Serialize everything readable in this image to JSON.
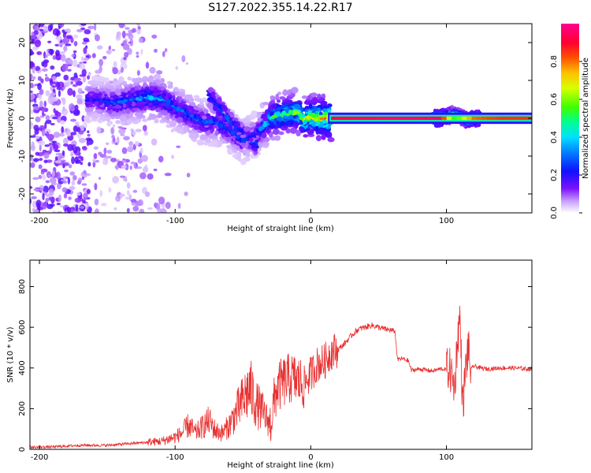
{
  "title": "S127.2022.355.14.22.R17",
  "chart_data": [
    {
      "type": "heatmap",
      "xlabel": "Height of straight line (km)",
      "ylabel": "Frequency (Hz)",
      "xlim": [
        -207,
        163
      ],
      "ylim": [
        -25,
        25
      ],
      "xticks": [
        -200,
        -100,
        0,
        100
      ],
      "yticks": [
        -20,
        -10,
        0,
        10,
        20
      ],
      "grid": false,
      "colorbar": {
        "label": "Normalized spectral amplitude",
        "range": [
          0,
          1
        ],
        "ticks": [
          "0.0",
          "0.2",
          "0.4",
          "0.6",
          "0.8"
        ],
        "colormap": [
          "#ffffff",
          "#9b30ff",
          "#3a00ff",
          "#0040ff",
          "#00c8ff",
          "#00ff90",
          "#50ff00",
          "#e6ff00",
          "#ffb000",
          "#ff4000",
          "#ff0040",
          "#ff0090"
        ]
      },
      "ridge": {
        "x": [
          -160,
          -145,
          -130,
          -120,
          -110,
          -100,
          -90,
          -80,
          -70,
          -60,
          -50,
          -40,
          -35,
          -30,
          -20,
          -10,
          -5,
          0,
          5,
          15,
          40,
          60,
          80,
          95,
          100,
          105,
          110,
          115,
          120,
          140,
          163
        ],
        "freq": [
          5,
          4,
          5,
          5.5,
          5,
          3,
          1,
          -1,
          -1,
          -3,
          -6,
          -4,
          -2,
          0,
          1,
          1.5,
          -0.5,
          0.5,
          0,
          0,
          0,
          0,
          0,
          0,
          0.5,
          1,
          0.5,
          -0.5,
          0,
          0,
          0
        ],
        "amplitude": [
          0.25,
          0.3,
          0.35,
          0.4,
          0.38,
          0.33,
          0.32,
          0.3,
          0.3,
          0.28,
          0.27,
          0.25,
          0.4,
          0.55,
          0.6,
          0.65,
          0.7,
          0.75,
          0.8,
          0.93,
          0.95,
          0.96,
          0.96,
          0.95,
          0.75,
          0.55,
          0.6,
          0.72,
          0.8,
          0.85,
          0.85
        ]
      },
      "branch": {
        "x": [
          -75,
          -68,
          -62,
          -55,
          -48,
          -43,
          -40
        ],
        "freq": [
          6,
          3,
          0,
          -3,
          -5,
          -6,
          -7
        ],
        "amplitude": [
          0.25,
          0.3,
          0.35,
          0.32,
          0.3,
          0.3,
          0.28
        ]
      }
    },
    {
      "type": "line",
      "xlabel": "Height of straight line (km)",
      "ylabel": "SNR (10 * v/v)",
      "xlim": [
        -207,
        163
      ],
      "ylim": [
        0,
        930
      ],
      "xticks": [
        -200,
        -100,
        0,
        100
      ],
      "yticks": [
        0,
        200,
        400,
        600,
        800
      ],
      "grid": false,
      "series": [
        {
          "color": "#e83030",
          "x": [
            -207,
            -190,
            -170,
            -150,
            -130,
            -110,
            -100,
            -95,
            -90,
            -85,
            -80,
            -75,
            -70,
            -65,
            -60,
            -55,
            -50,
            -45,
            -40,
            -35,
            -30,
            -25,
            -20,
            -15,
            -10,
            -5,
            0,
            5,
            10,
            15,
            20,
            25,
            30,
            35,
            40,
            45,
            50,
            55,
            60,
            62,
            64,
            66,
            68,
            70,
            72,
            74,
            76,
            80,
            85,
            90,
            95,
            98,
            100,
            102,
            104,
            106,
            108,
            110,
            112,
            114,
            116,
            118,
            120,
            125,
            130,
            140,
            150,
            160,
            163
          ],
          "y": [
            10,
            12,
            20,
            20,
            30,
            40,
            60,
            80,
            120,
            80,
            110,
            140,
            90,
            80,
            120,
            180,
            240,
            300,
            220,
            180,
            120,
            300,
            330,
            350,
            340,
            320,
            370,
            420,
            430,
            480,
            490,
            520,
            560,
            590,
            600,
            610,
            600,
            590,
            585,
            580,
            440,
            445,
            445,
            440,
            435,
            390,
            390,
            395,
            390,
            385,
            395,
            395,
            390,
            400,
            360,
            300,
            530,
            660,
            200,
            380,
            500,
            390,
            410,
            400,
            395,
            400,
            400,
            395,
            395
          ]
        }
      ]
    }
  ]
}
